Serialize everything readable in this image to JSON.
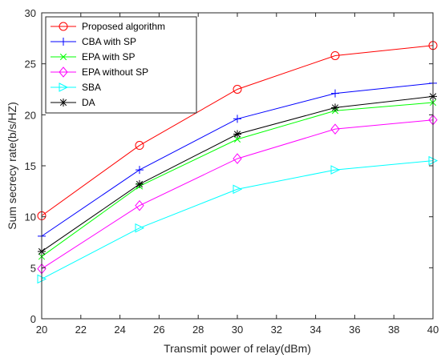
{
  "chart_data": {
    "type": "line",
    "xlabel": "Transmit power of relay(dBm)",
    "ylabel": "Sum secrecy rate(b/s/HZ)",
    "xlim": [
      20,
      40
    ],
    "ylim": [
      0,
      30
    ],
    "xticks": [
      20,
      22,
      24,
      26,
      28,
      30,
      32,
      34,
      36,
      38,
      40
    ],
    "yticks": [
      0,
      5,
      10,
      15,
      20,
      25,
      30
    ],
    "grid": false,
    "legend_position": "top-left",
    "x": [
      20,
      25,
      30,
      35,
      40
    ],
    "series": [
      {
        "name": "Proposed algorithm",
        "color": "#ff0000",
        "marker": "circle",
        "values": [
          10.1,
          17.0,
          22.5,
          25.8,
          26.8
        ]
      },
      {
        "name": "CBA with SP",
        "color": "#0000ff",
        "marker": "plus",
        "values": [
          8.1,
          14.6,
          19.6,
          22.1,
          23.1
        ]
      },
      {
        "name": "EPA with SP",
        "color": "#00ff00",
        "marker": "x",
        "values": [
          6.1,
          13.0,
          17.6,
          20.4,
          21.2
        ]
      },
      {
        "name": "EPA without SP",
        "color": "#ff00ff",
        "marker": "diamond",
        "values": [
          4.9,
          11.1,
          15.7,
          18.6,
          19.5
        ]
      },
      {
        "name": "SBA",
        "color": "#00ffff",
        "marker": "triangle-right",
        "values": [
          3.9,
          8.9,
          12.7,
          14.6,
          15.5
        ]
      },
      {
        "name": "DA",
        "color": "#000000",
        "marker": "asterisk",
        "values": [
          6.6,
          13.2,
          18.1,
          20.7,
          21.8
        ]
      }
    ]
  }
}
